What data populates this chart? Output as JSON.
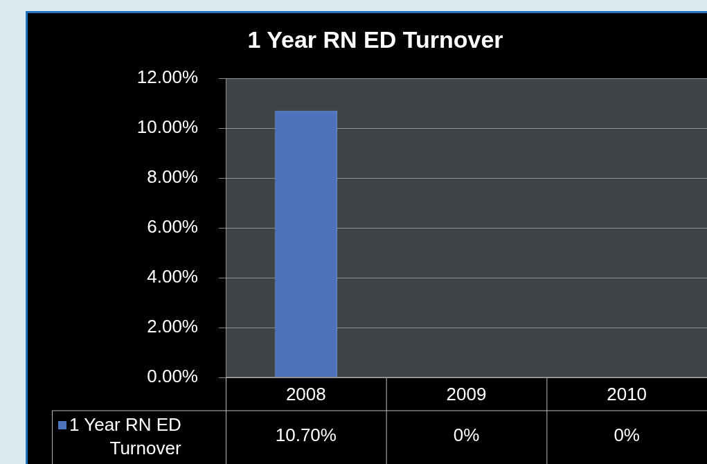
{
  "chart_data": {
    "type": "bar",
    "title": "1 Year RN ED Turnover",
    "categories": [
      "2008",
      "2009",
      "2010"
    ],
    "series": [
      {
        "name": "1 Year RN ED Turnover",
        "color": "#4f72bd",
        "values": [
          10.7,
          0,
          0
        ],
        "value_labels": [
          "10.70%",
          "0%",
          "0%"
        ]
      }
    ],
    "ylim": [
      0,
      12
    ],
    "yticks": [
      {
        "value": 0,
        "label": "0.00%"
      },
      {
        "value": 2,
        "label": "2.00%"
      },
      {
        "value": 4,
        "label": "4.00%"
      },
      {
        "value": 6,
        "label": "6.00%"
      },
      {
        "value": 8,
        "label": "8.00%"
      },
      {
        "value": 10,
        "label": "10.00%"
      },
      {
        "value": 12,
        "label": "12.00%"
      }
    ],
    "grid": "y",
    "legend": "bottom"
  }
}
